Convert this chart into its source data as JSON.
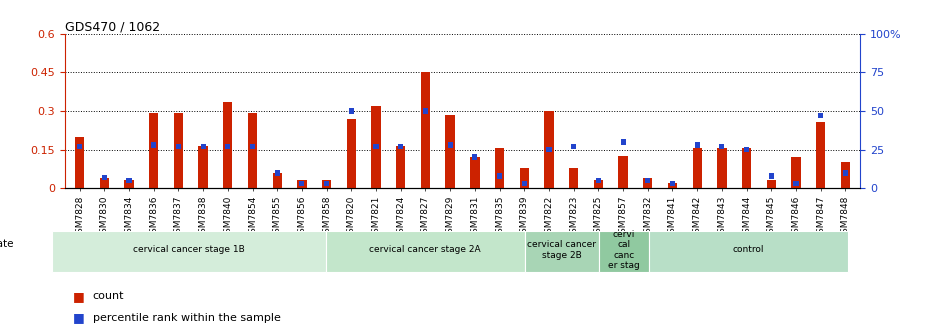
{
  "title": "GDS470 / 1062",
  "samples": [
    "GSM7828",
    "GSM7830",
    "GSM7834",
    "GSM7836",
    "GSM7837",
    "GSM7838",
    "GSM7840",
    "GSM7854",
    "GSM7855",
    "GSM7856",
    "GSM7858",
    "GSM7820",
    "GSM7821",
    "GSM7824",
    "GSM7827",
    "GSM7829",
    "GSM7831",
    "GSM7835",
    "GSM7839",
    "GSM7822",
    "GSM7823",
    "GSM7825",
    "GSM7857",
    "GSM7832",
    "GSM7841",
    "GSM7842",
    "GSM7843",
    "GSM7844",
    "GSM7845",
    "GSM7846",
    "GSM7847",
    "GSM7848"
  ],
  "count": [
    0.2,
    0.04,
    0.03,
    0.29,
    0.29,
    0.165,
    0.335,
    0.29,
    0.06,
    0.03,
    0.03,
    0.27,
    0.32,
    0.165,
    0.45,
    0.285,
    0.12,
    0.155,
    0.08,
    0.3,
    0.08,
    0.03,
    0.125,
    0.04,
    0.02,
    0.155,
    0.155,
    0.155,
    0.03,
    0.12,
    0.255,
    0.1
  ],
  "percentile": [
    27,
    7,
    5,
    28,
    27,
    27,
    27,
    27,
    10,
    3,
    3,
    50,
    27,
    27,
    50,
    28,
    20,
    8,
    3,
    25,
    27,
    5,
    30,
    5,
    3,
    28,
    27,
    25,
    8,
    3,
    47,
    10
  ],
  "groups": [
    {
      "label": "cervical cancer stage 1B",
      "start": 0,
      "end": 11,
      "color": "#d4edda"
    },
    {
      "label": "cervical cancer stage 2A",
      "start": 11,
      "end": 19,
      "color": "#c3e6cb"
    },
    {
      "label": "cervical cancer\nstage 2B",
      "start": 19,
      "end": 22,
      "color": "#a8d5b5"
    },
    {
      "label": "cervi\ncal\ncanc\ner stag",
      "start": 22,
      "end": 24,
      "color": "#90c9a0"
    },
    {
      "label": "control",
      "start": 24,
      "end": 32,
      "color": "#b8dfc7"
    }
  ],
  "ylim_left": [
    0,
    0.6
  ],
  "ylim_right": [
    0,
    100
  ],
  "yticks_left": [
    0,
    0.15,
    0.3,
    0.45,
    0.6
  ],
  "yticks_right": [
    0,
    25,
    50,
    75,
    100
  ],
  "count_color": "#cc2200",
  "percentile_color": "#2244cc",
  "background_color": "#ffffff"
}
